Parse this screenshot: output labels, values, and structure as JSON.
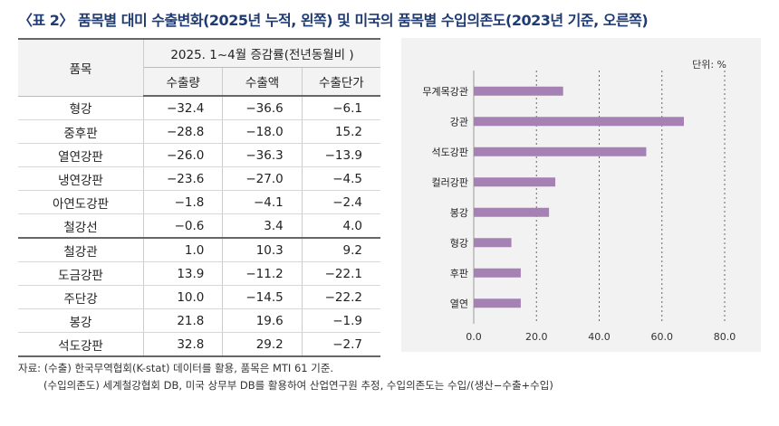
{
  "title": "〈표 2〉 품목별 대미 수출변화(2025년 누적, 왼쪽) 및 미국의 품목별 수입의존도(2023년 기준, 오른쪽)",
  "table": {
    "item_header": "품목",
    "period_header": "2025. 1~4월 증감률(전년동월비 )",
    "columns": [
      "수출량",
      "수출액",
      "수출단가"
    ],
    "rows": [
      {
        "item": "형강",
        "values": [
          "-32.4",
          "-36.6",
          "-6.1"
        ]
      },
      {
        "item": "중후판",
        "values": [
          "-28.8",
          "-18.0",
          "15.2"
        ]
      },
      {
        "item": "열연강판",
        "values": [
          "-26.0",
          "-36.3",
          "-13.9"
        ]
      },
      {
        "item": "냉연강판",
        "values": [
          "-23.6",
          "-27.0",
          "-4.5"
        ]
      },
      {
        "item": "아연도강판",
        "values": [
          "-1.8",
          "-4.1",
          "-2.4"
        ]
      },
      {
        "item": "철강선",
        "values": [
          "-0.6",
          "3.4",
          "4.0"
        ]
      },
      {
        "item": "철강관",
        "values": [
          "1.0",
          "10.3",
          "9.2"
        ]
      },
      {
        "item": "도금강판",
        "values": [
          "13.9",
          "-11.2",
          "-22.1"
        ]
      },
      {
        "item": "주단강",
        "values": [
          "10.0",
          "-14.5",
          "-22.2"
        ]
      },
      {
        "item": "봉강",
        "values": [
          "21.8",
          "19.6",
          "-1.9"
        ]
      },
      {
        "item": "석도강판",
        "values": [
          "32.8",
          "29.2",
          "-2.7"
        ]
      }
    ]
  },
  "chart_data": {
    "type": "bar",
    "orientation": "horizontal",
    "unit_label": "단위: %",
    "categories": [
      "무계목강관",
      "강관",
      "석도강판",
      "컬러강판",
      "봉강",
      "형강",
      "후판",
      "열연"
    ],
    "values": [
      28.5,
      67,
      55,
      26,
      24,
      12,
      15,
      15
    ],
    "xlim": [
      0,
      80
    ],
    "xticks": [
      "0.0",
      "20.0",
      "40.0",
      "60.0",
      "80.0"
    ],
    "gridlines": "dashed vertical",
    "bar_color": "#a582b3"
  },
  "notes": {
    "line1": "자료: (수출) 한국무역협회(K-stat) 데이터를 활용, 품목은 MTI 61 기준.",
    "line2": "(수입의존도) 세계철강협회 DB, 미국 상무부 DB를 활용하여 산업연구원 추정, 수입의존도는 수입/(생산−수출+수입)"
  }
}
